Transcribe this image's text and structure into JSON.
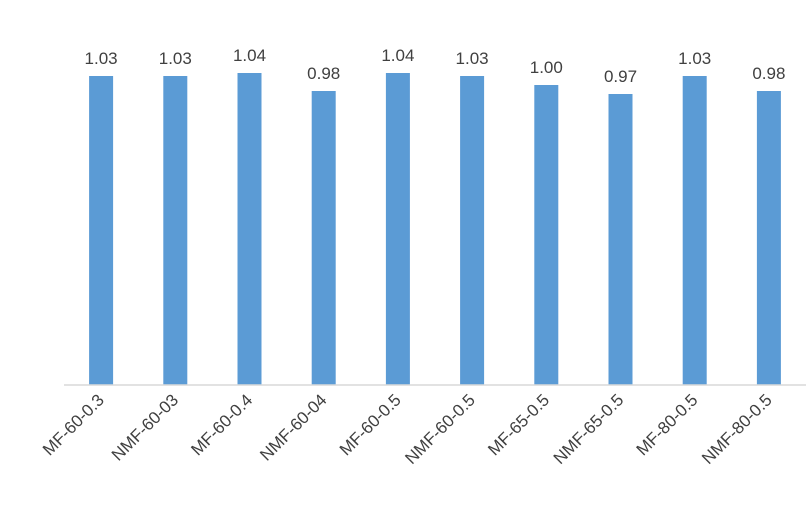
{
  "chart_data": {
    "type": "bar",
    "title": "",
    "xlabel": "",
    "ylabel": "",
    "categories": [
      "MF-60-0.3",
      "NMF-60-03",
      "MF-60-0.4",
      "NMF-60-04",
      "MF-60-0.5",
      "NMF-60-0.5",
      "MF-65-0.5",
      "NMF-65-0.5",
      "MF-80-0.5",
      "NMF-80-0.5"
    ],
    "values": [
      1.03,
      1.03,
      1.04,
      0.98,
      1.04,
      1.03,
      1.0,
      0.97,
      1.03,
      0.98
    ],
    "data_labels": [
      "1.03",
      "1.03",
      "1.04",
      "0.98",
      "1.04",
      "1.03",
      "1.00",
      "0.97",
      "1.03",
      "0.98"
    ],
    "ylim": [
      0,
      1.04
    ],
    "grid": false,
    "legend": "none",
    "bar_color": "#5b9bd5",
    "axis_color": "#d9d9d9",
    "text_color": "#404040"
  }
}
